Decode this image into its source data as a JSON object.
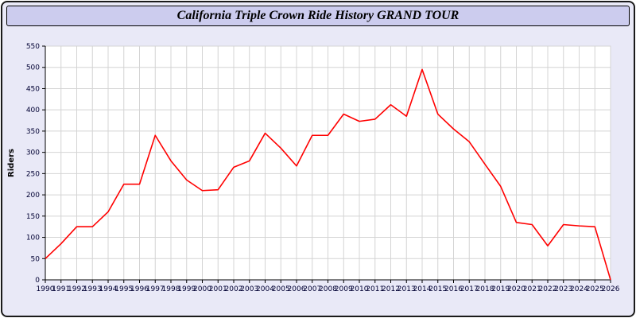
{
  "title": "California Triple Crown Ride History GRAND TOUR",
  "colors": {
    "line": "#ff0000",
    "window_bg": "#e9e9f7",
    "titlebar_bg": "#ccccee",
    "plot_bg": "#ffffff",
    "grid": "#d4d4d4",
    "tick_text": "#000033",
    "axis": "#000000"
  },
  "chart_data": {
    "type": "line",
    "title": "California Triple Crown Ride History GRAND TOUR",
    "xlabel": "",
    "ylabel": "Riders",
    "ylim": [
      0,
      550
    ],
    "ytick_step": 50,
    "grid": true,
    "legend": false,
    "categories": [
      "1990",
      "1991",
      "1992",
      "1993",
      "1994",
      "1995",
      "1996",
      "1997",
      "1998",
      "1999",
      "2000",
      "2001",
      "2002",
      "2003",
      "2004",
      "2005",
      "2006",
      "2007",
      "2008",
      "2009",
      "2010",
      "2011",
      "2012",
      "2013",
      "2014",
      "2015",
      "2016",
      "2017",
      "2018",
      "2019",
      "2020",
      "2021",
      "2022",
      "2023",
      "2024",
      "2025",
      "2026"
    ],
    "series": [
      {
        "name": "Riders",
        "values": [
          50,
          85,
          125,
          125,
          160,
          225,
          225,
          340,
          280,
          235,
          210,
          212,
          265,
          280,
          345,
          310,
          268,
          340,
          340,
          390,
          373,
          378,
          412,
          385,
          495,
          390,
          355,
          325,
          272,
          220,
          135,
          130,
          80,
          130,
          127,
          125,
          0
        ]
      }
    ]
  }
}
